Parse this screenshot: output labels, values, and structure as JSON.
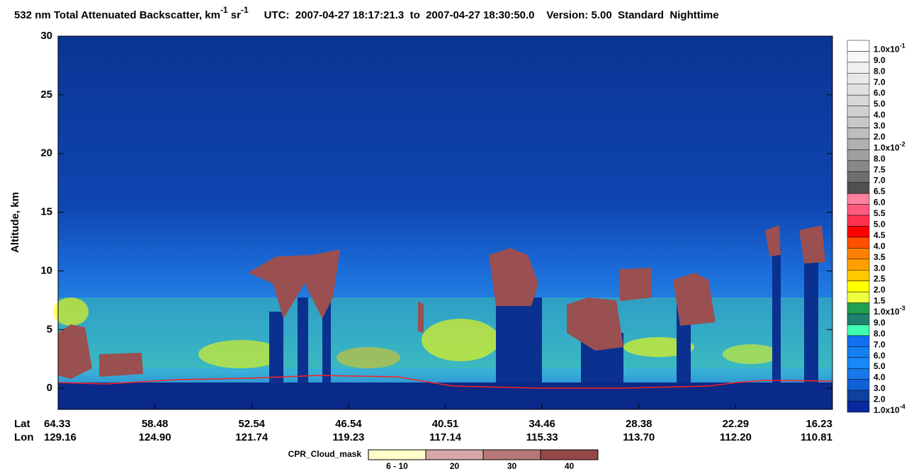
{
  "chart_data": {
    "type": "heatmap",
    "title": {
      "part1": "532 nm Total Attenuated Backscatter, km",
      "sup1": "-1",
      "part2": " sr",
      "sup2": "-1",
      "part3": "UTC:  2007-04-27 18:17:21.3  to  2007-04-27 18:30:50.0    Version: 5.00  Standard  Nighttime"
    },
    "ylabel": "Altitude, km",
    "ylim": [
      -1.8,
      30
    ],
    "yticks": [
      0,
      5,
      10,
      15,
      20,
      25,
      30
    ],
    "x_axis_names": [
      "Lat",
      "Lon"
    ],
    "lat": [
      "64.33",
      "58.48",
      "52.54",
      "46.54",
      "40.51",
      "34.46",
      "28.38",
      "22.29",
      "16.23"
    ],
    "lon": [
      "129.16",
      "124.90",
      "121.74",
      "119.23",
      "117.14",
      "115.33",
      "113.70",
      "112.20",
      "110.81"
    ],
    "colorbar": [
      {
        "label": "1.0x10",
        "sup": "-1",
        "color": "#ffffff"
      },
      {
        "label": "9.0",
        "color": "#f8f8f8"
      },
      {
        "label": "8.0",
        "color": "#f0f0f0"
      },
      {
        "label": "7.0",
        "color": "#e8e8e8"
      },
      {
        "label": "6.0",
        "color": "#e0e0e0"
      },
      {
        "label": "5.0",
        "color": "#d8d8d8"
      },
      {
        "label": "4.0",
        "color": "#d0d0d0"
      },
      {
        "label": "3.0",
        "color": "#c8c8c8"
      },
      {
        "label": "2.0",
        "color": "#bebebe"
      },
      {
        "label": "1.0x10",
        "sup": "-2",
        "color": "#b0b0b0"
      },
      {
        "label": "8.0",
        "color": "#a0a0a0"
      },
      {
        "label": "7.5",
        "color": "#888888"
      },
      {
        "label": "7.0",
        "color": "#6e6e6e"
      },
      {
        "label": "6.5",
        "color": "#505050"
      },
      {
        "label": "6.0",
        "color": "#ff80a0"
      },
      {
        "label": "5.5",
        "color": "#ff5a80"
      },
      {
        "label": "5.0",
        "color": "#ff3050"
      },
      {
        "label": "4.5",
        "color": "#ff0000"
      },
      {
        "label": "4.0",
        "color": "#ff5000"
      },
      {
        "label": "3.5",
        "color": "#ff8000"
      },
      {
        "label": "3.0",
        "color": "#ffa000"
      },
      {
        "label": "2.5",
        "color": "#ffc800"
      },
      {
        "label": "2.0",
        "color": "#ffff00"
      },
      {
        "label": "1.5",
        "color": "#f0ff40"
      },
      {
        "label": "1.0x10",
        "sup": "-3",
        "color": "#20a050"
      },
      {
        "label": "9.0",
        "color": "#208070"
      },
      {
        "label": "8.0",
        "color": "#40ffb0"
      },
      {
        "label": "7.0",
        "color": "#1070f0"
      },
      {
        "label": "6.0",
        "color": "#1480f0"
      },
      {
        "label": "5.0",
        "color": "#1888f8"
      },
      {
        "label": "4.0",
        "color": "#1878e8"
      },
      {
        "label": "3.0",
        "color": "#1060d8"
      },
      {
        "label": "2.0",
        "color": "#1040a0"
      },
      {
        "label": "1.0x10",
        "sup": "-4",
        "color": "#0a28a0"
      }
    ],
    "cloud_mask": {
      "title": "CPR_Cloud_mask",
      "labels": [
        "6 - 10",
        "20",
        "30",
        "40"
      ],
      "colors": [
        "#fffdc8",
        "#d6a8a8",
        "#b87878",
        "#964848"
      ]
    }
  }
}
